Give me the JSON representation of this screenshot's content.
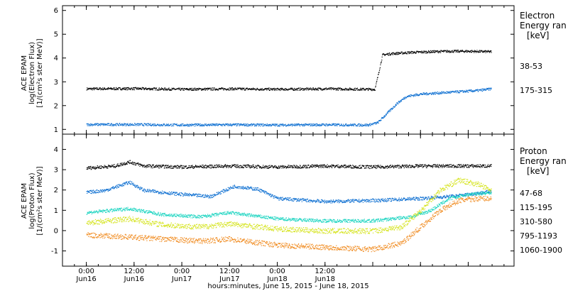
{
  "chart_data": [
    {
      "type": "scatter",
      "panel": "electron",
      "ylabel_lines": [
        "ACE EPAM",
        "log(Electron Flux)",
        "[1/(cm²s ster MeV)]"
      ],
      "ylim": [
        0.8,
        6.2
      ],
      "yticks": [
        1,
        2,
        3,
        4,
        5,
        6
      ],
      "xlim": [
        -0.25,
        4.48
      ],
      "legend_title_lines": [
        "Electron",
        "Energy ran",
        "[keV]"
      ],
      "series": [
        {
          "name": "38-53",
          "color": "#000000",
          "x": [
            0.0,
            0.5,
            1.0,
            1.5,
            2.0,
            2.5,
            3.0,
            3.02,
            3.1,
            3.2,
            3.4,
            3.6,
            3.8,
            4.0,
            4.24
          ],
          "y": [
            2.72,
            2.73,
            2.7,
            2.72,
            2.7,
            2.72,
            2.7,
            2.7,
            4.15,
            4.2,
            4.25,
            4.28,
            4.3,
            4.3,
            4.28
          ]
        },
        {
          "name": "175-315",
          "color": "#0d6fd1",
          "x": [
            0.0,
            0.5,
            1.0,
            1.5,
            2.0,
            2.5,
            2.95,
            3.05,
            3.15,
            3.25,
            3.35,
            3.5,
            3.7,
            3.9,
            4.1,
            4.24
          ],
          "y": [
            1.22,
            1.22,
            1.2,
            1.21,
            1.2,
            1.21,
            1.2,
            1.3,
            1.7,
            2.1,
            2.4,
            2.5,
            2.55,
            2.6,
            2.65,
            2.72
          ]
        }
      ]
    },
    {
      "type": "scatter",
      "panel": "proton",
      "ylabel_lines": [
        "ACE EPAM",
        "log(Proton Flux)",
        "[1/(cm²s ster MeV)]"
      ],
      "ylim": [
        -1.75,
        4.75
      ],
      "yticks": [
        -1,
        0,
        1,
        2,
        3,
        4
      ],
      "xlim": [
        -0.25,
        4.48
      ],
      "xticks": [
        0,
        0.5,
        1,
        1.5,
        2,
        2.5,
        3,
        3.5,
        4,
        4.5
      ],
      "xtick_labels": [
        [
          "0:00",
          "Jun16"
        ],
        [
          "12:00",
          "Jun16"
        ],
        [
          "0:00",
          "Jun17"
        ],
        [
          "12:00",
          "Jun17"
        ],
        [
          "0:00",
          "Jun18"
        ],
        [
          "12:00",
          "Jun18"
        ]
      ],
      "xtick_label_positions": [
        0.0,
        0.5,
        1.0,
        1.5,
        2.0,
        2.5
      ],
      "xlabel": "hours:minutes, June 15, 2015 - June 18, 2015",
      "legend_title_lines": [
        "Proton",
        "Energy ran",
        "[keV]"
      ],
      "series": [
        {
          "name": "47-68",
          "color": "#000000",
          "x": [
            0.0,
            0.3,
            0.45,
            0.6,
            1.0,
            1.5,
            2.0,
            2.5,
            3.0,
            3.5,
            4.0,
            4.24
          ],
          "y": [
            3.1,
            3.2,
            3.4,
            3.2,
            3.15,
            3.2,
            3.15,
            3.2,
            3.15,
            3.2,
            3.2,
            3.2
          ]
        },
        {
          "name": "115-195",
          "color": "#0d6fd1",
          "x": [
            0.0,
            0.2,
            0.45,
            0.6,
            1.0,
            1.3,
            1.55,
            1.8,
            2.0,
            2.5,
            3.0,
            3.5,
            3.8,
            4.0,
            4.24
          ],
          "y": [
            1.9,
            2.0,
            2.4,
            2.0,
            1.8,
            1.7,
            2.2,
            2.05,
            1.6,
            1.45,
            1.5,
            1.6,
            1.7,
            1.8,
            1.95
          ]
        },
        {
          "name": "310-580",
          "color": "#19d4c0",
          "x": [
            0.0,
            0.45,
            0.8,
            1.2,
            1.5,
            2.0,
            2.5,
            3.0,
            3.4,
            3.6,
            3.8,
            4.0,
            4.24
          ],
          "y": [
            0.9,
            1.1,
            0.8,
            0.7,
            0.9,
            0.6,
            0.5,
            0.5,
            0.7,
            1.0,
            1.6,
            1.8,
            1.9
          ]
        },
        {
          "name": "795-1193",
          "color": "#d4e318",
          "x": [
            0.0,
            0.45,
            0.8,
            1.2,
            1.5,
            2.0,
            2.5,
            3.0,
            3.3,
            3.5,
            3.7,
            3.9,
            4.1,
            4.24
          ],
          "y": [
            0.4,
            0.6,
            0.3,
            0.2,
            0.35,
            0.1,
            0.0,
            0.0,
            0.2,
            1.0,
            2.0,
            2.5,
            2.3,
            2.0
          ]
        },
        {
          "name": "1060-1900",
          "color": "#f08a1e",
          "x": [
            0.0,
            0.45,
            0.8,
            1.2,
            1.5,
            2.0,
            2.5,
            3.0,
            3.3,
            3.5,
            3.7,
            3.9,
            4.1,
            4.24
          ],
          "y": [
            -0.2,
            -0.3,
            -0.4,
            -0.5,
            -0.4,
            -0.7,
            -0.8,
            -0.9,
            -0.6,
            0.2,
            1.0,
            1.5,
            1.6,
            1.6
          ]
        }
      ]
    }
  ]
}
